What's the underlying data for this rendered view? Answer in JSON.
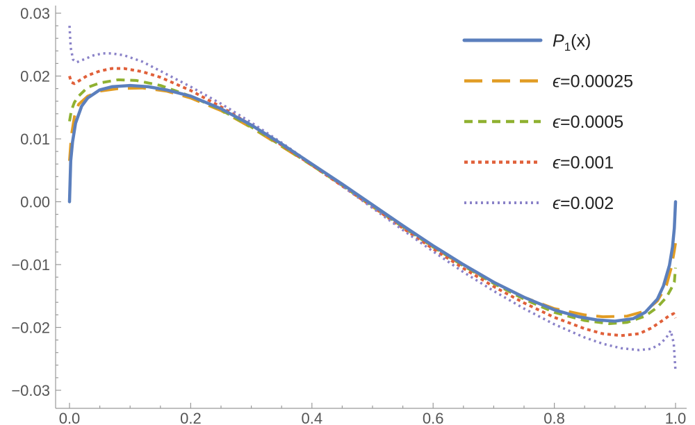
{
  "chart_data": {
    "type": "line",
    "title": "",
    "xlabel": "",
    "ylabel": "",
    "xlim": [
      0.0,
      1.0
    ],
    "ylim": [
      -0.03,
      0.03
    ],
    "grid": false,
    "legend_position": "top-right",
    "x_ticks": [
      "0.0",
      "0.2",
      "0.4",
      "0.6",
      "0.8",
      "1.0"
    ],
    "y_ticks": [
      "0.03",
      "0.02",
      "0.01",
      "0.00",
      "−0.01",
      "−0.02",
      "−0.03"
    ],
    "series": [
      {
        "name": "P1(x)",
        "legend_main": "P",
        "legend_sub": "1",
        "legend_tail": "(x)",
        "style": "solid",
        "color": "#5b7fbd",
        "x": [
          0.0,
          0.002,
          0.005,
          0.01,
          0.02,
          0.03,
          0.05,
          0.07,
          0.1,
          0.13,
          0.16,
          0.2,
          0.25,
          0.3,
          0.35,
          0.4,
          0.45,
          0.5,
          0.55,
          0.6,
          0.65,
          0.7,
          0.75,
          0.8,
          0.84,
          0.87,
          0.9,
          0.93,
          0.95,
          0.97,
          0.98,
          0.99,
          0.995,
          0.998,
          1.0
        ],
        "y": [
          0.0,
          0.0065,
          0.0095,
          0.0125,
          0.0152,
          0.0165,
          0.0178,
          0.0183,
          0.0185,
          0.0183,
          0.0178,
          0.0168,
          0.0148,
          0.0122,
          0.0092,
          0.006,
          0.0028,
          -0.0005,
          -0.0038,
          -0.007,
          -0.01,
          -0.0128,
          -0.0152,
          -0.0172,
          -0.0183,
          -0.0188,
          -0.019,
          -0.0186,
          -0.0176,
          -0.0155,
          -0.0134,
          -0.0101,
          -0.0072,
          -0.0042,
          0.0
        ]
      },
      {
        "name": "ϵ=0.00025",
        "style": "longdash",
        "color": "#e19c24",
        "x": [
          0.0,
          0.003,
          0.008,
          0.015,
          0.03,
          0.05,
          0.08,
          0.12,
          0.16,
          0.2,
          0.25,
          0.3,
          0.35,
          0.4,
          0.45,
          0.5,
          0.55,
          0.6,
          0.65,
          0.7,
          0.75,
          0.8,
          0.85,
          0.88,
          0.92,
          0.95,
          0.97,
          0.985,
          0.993,
          0.998,
          1.0
        ],
        "y": [
          0.0065,
          0.0105,
          0.0135,
          0.0155,
          0.0168,
          0.0176,
          0.018,
          0.0181,
          0.0176,
          0.0165,
          0.0145,
          0.0118,
          0.0088,
          0.0058,
          0.0026,
          -0.0008,
          -0.004,
          -0.0072,
          -0.0102,
          -0.0128,
          -0.0152,
          -0.017,
          -0.018,
          -0.0183,
          -0.0182,
          -0.0174,
          -0.0158,
          -0.0133,
          -0.0105,
          -0.0078,
          -0.0066
        ]
      },
      {
        "name": "ϵ=0.0005",
        "style": "dash",
        "color": "#8fb131",
        "x": [
          0.0,
          0.003,
          0.008,
          0.015,
          0.03,
          0.05,
          0.08,
          0.11,
          0.15,
          0.2,
          0.25,
          0.3,
          0.35,
          0.4,
          0.45,
          0.5,
          0.55,
          0.6,
          0.65,
          0.7,
          0.75,
          0.8,
          0.85,
          0.89,
          0.92,
          0.95,
          0.97,
          0.985,
          0.993,
          0.998,
          1.0
        ],
        "y": [
          0.0128,
          0.0145,
          0.0158,
          0.0168,
          0.0182,
          0.0189,
          0.0194,
          0.0193,
          0.0185,
          0.0168,
          0.0146,
          0.0119,
          0.0089,
          0.0058,
          0.0026,
          -0.0007,
          -0.004,
          -0.0072,
          -0.0102,
          -0.013,
          -0.0155,
          -0.0176,
          -0.0189,
          -0.0194,
          -0.0192,
          -0.0182,
          -0.0168,
          -0.0152,
          -0.0138,
          -0.0128,
          -0.0105
        ]
      },
      {
        "name": "ϵ=0.001",
        "style": "dot",
        "color": "#e0603a",
        "x": [
          0.0,
          0.003,
          0.008,
          0.015,
          0.03,
          0.05,
          0.07,
          0.09,
          0.12,
          0.15,
          0.2,
          0.25,
          0.3,
          0.35,
          0.4,
          0.45,
          0.5,
          0.55,
          0.6,
          0.65,
          0.7,
          0.75,
          0.8,
          0.85,
          0.88,
          0.91,
          0.94,
          0.96,
          0.98,
          0.99,
          0.997,
          1.0
        ],
        "y": [
          0.02,
          0.019,
          0.0188,
          0.0192,
          0.0201,
          0.0208,
          0.0212,
          0.0212,
          0.0207,
          0.0198,
          0.0177,
          0.0151,
          0.0122,
          0.009,
          0.0058,
          0.0025,
          -0.0008,
          -0.0042,
          -0.0075,
          -0.0106,
          -0.0135,
          -0.0161,
          -0.0184,
          -0.0202,
          -0.021,
          -0.0213,
          -0.021,
          -0.0201,
          -0.0188,
          -0.0181,
          -0.0178,
          -0.0185
        ]
      },
      {
        "name": "ϵ=0.002",
        "style": "finedot",
        "color": "#8a82c8",
        "x": [
          0.0,
          0.002,
          0.006,
          0.012,
          0.025,
          0.04,
          0.055,
          0.07,
          0.09,
          0.12,
          0.15,
          0.2,
          0.25,
          0.3,
          0.35,
          0.4,
          0.45,
          0.5,
          0.55,
          0.6,
          0.65,
          0.7,
          0.75,
          0.8,
          0.85,
          0.88,
          0.91,
          0.94,
          0.96,
          0.975,
          0.985,
          0.992,
          0.997,
          1.0
        ],
        "y": [
          0.028,
          0.0245,
          0.0226,
          0.0222,
          0.0227,
          0.0233,
          0.0236,
          0.0236,
          0.0233,
          0.0223,
          0.0208,
          0.0183,
          0.0156,
          0.0126,
          0.0094,
          0.006,
          0.0025,
          -0.001,
          -0.0045,
          -0.0079,
          -0.0112,
          -0.0142,
          -0.017,
          -0.0195,
          -0.0216,
          -0.0226,
          -0.0233,
          -0.0236,
          -0.0234,
          -0.0226,
          -0.0216,
          -0.0205,
          -0.0225,
          -0.027
        ]
      }
    ]
  }
}
